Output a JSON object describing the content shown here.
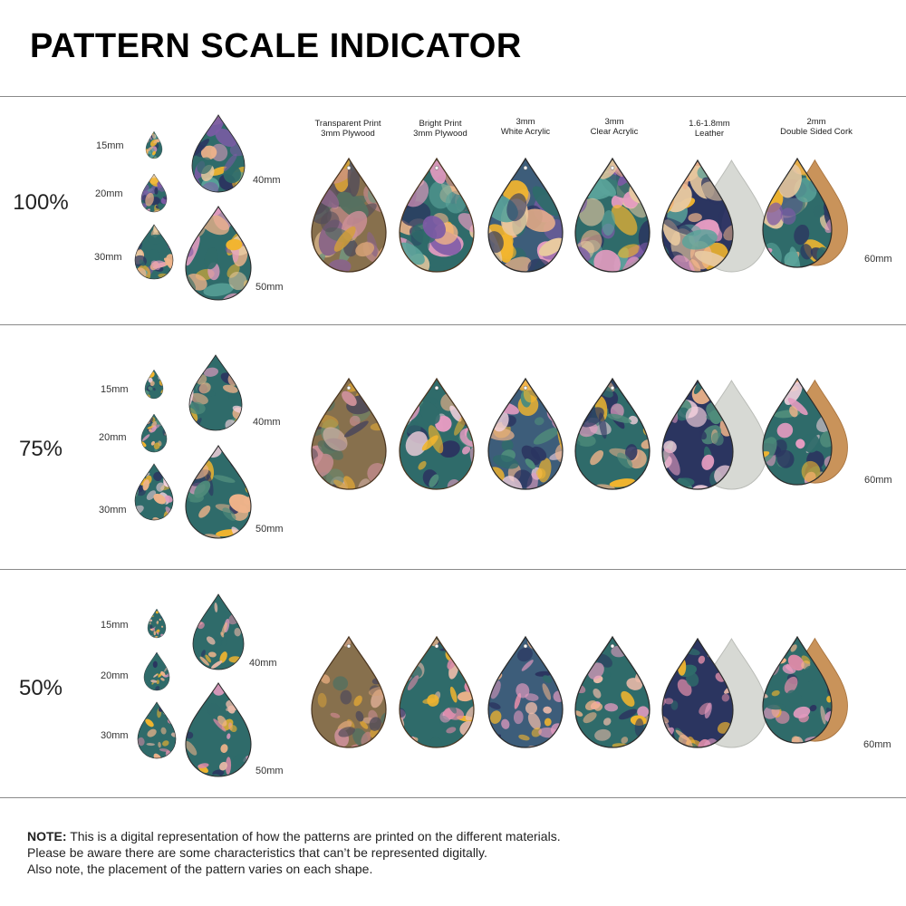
{
  "title": "PATTERN SCALE INDICATOR",
  "materials": [
    {
      "line1": "Transparent Print",
      "line2": "3mm Plywood"
    },
    {
      "line1": "Bright Print",
      "line2": "3mm Plywood"
    },
    {
      "line1": "3mm",
      "line2": "White Acrylic"
    },
    {
      "line1": "3mm",
      "line2": "Clear Acrylic"
    },
    {
      "line1": "1.6-1.8mm",
      "line2": "Leather"
    },
    {
      "line1": "2mm",
      "line2": "Double Sided Cork"
    }
  ],
  "sections": [
    {
      "scale": "100%",
      "sizes": {
        "s15": "15mm",
        "s20": "20mm",
        "s30": "30mm",
        "s40": "40mm",
        "s50": "50mm"
      },
      "large_size": "60mm"
    },
    {
      "scale": "75%",
      "sizes": {
        "s15": "15mm",
        "s20": "20mm",
        "s30": "30mm",
        "s40": "40mm",
        "s50": "50mm"
      },
      "large_size": "60mm"
    },
    {
      "scale": "50%",
      "sizes": {
        "s15": "15mm",
        "s20": "20mm",
        "s30": "30mm",
        "s40": "40mm",
        "s50": "50mm"
      },
      "large_size": "60mm"
    }
  ],
  "note": {
    "label": "NOTE:",
    "line1": " This is a digital representation of how the patterns are printed on the different materials.",
    "line2": "Please be aware there are some characteristics that can’t be represented digitally.",
    "line3": "Also note, the placement of the pattern varies on each shape."
  },
  "colors": {
    "teal": "#2f6b6a",
    "navy": "#2b3560",
    "peach": "#f0b48a",
    "pink": "#e39bc0",
    "yellow": "#f2b52e",
    "purple": "#7d5aa6",
    "cork": "#c9935a",
    "leather": "#d7d9d4"
  }
}
